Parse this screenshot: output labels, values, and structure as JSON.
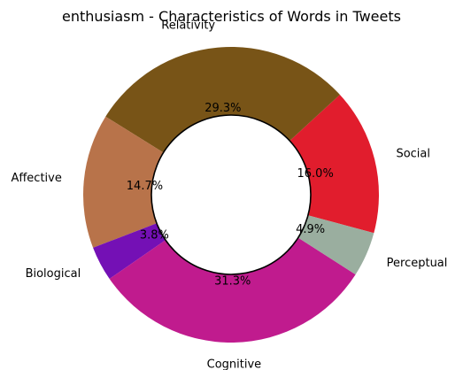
{
  "chart_data": {
    "type": "pie",
    "style": "donut",
    "title": "enthusiasm - Characteristics of Words in Tweets",
    "slices": [
      {
        "label": "Social",
        "value": 16.0,
        "pct_label": "16.0%",
        "color": "#e11d2d"
      },
      {
        "label": "Relativity",
        "value": 29.3,
        "pct_label": "29.3%",
        "color": "#785417"
      },
      {
        "label": "Affective",
        "value": 14.7,
        "pct_label": "14.7%",
        "color": "#b8734a"
      },
      {
        "label": "Biological",
        "value": 3.8,
        "pct_label": "3.8%",
        "color": "#7410b5"
      },
      {
        "label": "Cognitive",
        "value": 31.3,
        "pct_label": "31.3%",
        "color": "#c01b8e"
      },
      {
        "label": "Perceptual",
        "value": 4.9,
        "pct_label": "4.9%",
        "color": "#9aae9f"
      }
    ],
    "start_angle_deg": -15,
    "direction": "counterclockwise"
  }
}
